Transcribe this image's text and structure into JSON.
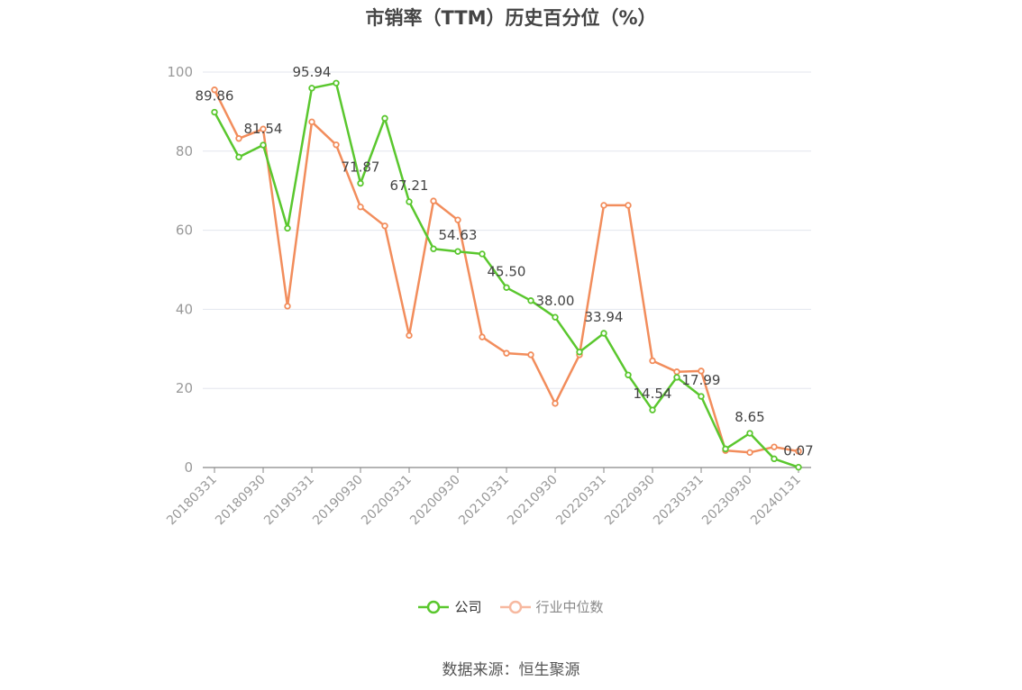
{
  "chart_data": {
    "type": "line",
    "title": "市销率（TTM）历史百分位（%）",
    "source": "数据来源：恒生聚源",
    "ylim": [
      0,
      100
    ],
    "yticks": [
      0,
      20,
      40,
      60,
      80,
      100
    ],
    "x": [
      "20180331",
      "20180630",
      "20180930",
      "20181231",
      "20190331",
      "20190630",
      "20190930",
      "20191231",
      "20200331",
      "20200630",
      "20200930",
      "20201231",
      "20210331",
      "20210630",
      "20210930",
      "20211231",
      "20220331",
      "20220630",
      "20220930",
      "20221231",
      "20230331",
      "20230630",
      "20230930",
      "20231231",
      "20240131"
    ],
    "xtick_labels": [
      "20180331",
      "20180930",
      "20190331",
      "20190930",
      "20200331",
      "20200930",
      "20210331",
      "20210930",
      "20220331",
      "20220930",
      "20230331",
      "20230930",
      "20240131"
    ],
    "series": [
      {
        "name": "公司",
        "color": "#5ac72e",
        "values": [
          89.86,
          78.5,
          81.54,
          60.5,
          95.94,
          97.2,
          71.87,
          88.3,
          67.21,
          55.3,
          54.63,
          54.0,
          45.5,
          42.2,
          38.0,
          29.2,
          33.94,
          23.4,
          14.54,
          22.8,
          17.99,
          4.7,
          8.65,
          2.2,
          0.07
        ]
      },
      {
        "name": "行业中位数",
        "color": "#f28d5c",
        "values": [
          95.5,
          83.2,
          85.6,
          40.8,
          87.4,
          81.6,
          65.9,
          61.1,
          33.4,
          67.4,
          62.6,
          33.0,
          28.9,
          28.5,
          16.2,
          28.5,
          66.3,
          66.3,
          27.0,
          24.2,
          24.4,
          4.3,
          3.8,
          5.2,
          4.1
        ]
      }
    ],
    "data_labels": [
      {
        "index": 0,
        "text": "89.86"
      },
      {
        "index": 2,
        "text": "81.54"
      },
      {
        "index": 4,
        "text": "95.94"
      },
      {
        "index": 6,
        "text": "71.87"
      },
      {
        "index": 8,
        "text": "67.21"
      },
      {
        "index": 10,
        "text": "54.63"
      },
      {
        "index": 12,
        "text": "45.50"
      },
      {
        "index": 14,
        "text": "38.00"
      },
      {
        "index": 16,
        "text": "33.94"
      },
      {
        "index": 18,
        "text": "14.54"
      },
      {
        "index": 20,
        "text": "17.99"
      },
      {
        "index": 22,
        "text": "8.65"
      },
      {
        "index": 24,
        "text": "0.07"
      }
    ],
    "legend_position": "bottom",
    "grid": true
  }
}
